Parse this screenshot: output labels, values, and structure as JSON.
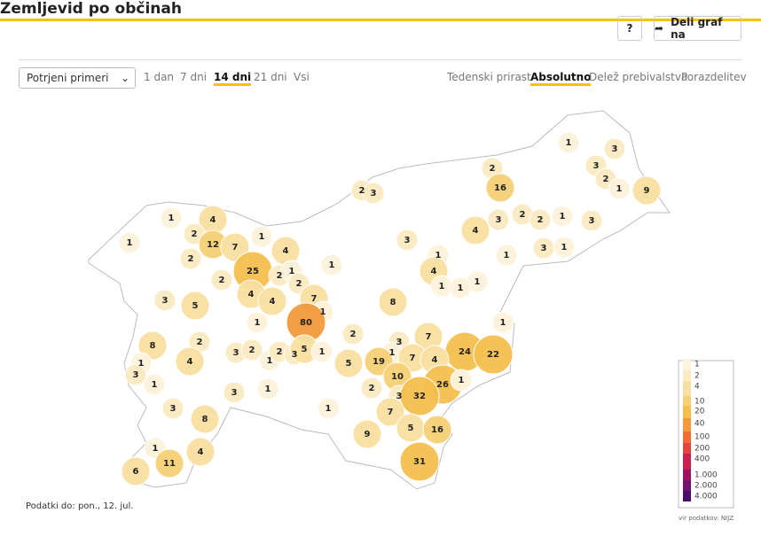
{
  "header": {
    "title": "Zemljevid po občinah",
    "help": "?",
    "share": "Deli graf na"
  },
  "controls": {
    "select": "Potrjeni primeri",
    "periods": [
      "1 dan",
      "7 dni",
      "14 dni",
      "21 dni",
      "Vsi"
    ],
    "active_period": 2,
    "modes": [
      "Tedenski prirast",
      "Absolutno",
      "Delež prebivalstva",
      "Porazdelitev"
    ],
    "active_mode": 1
  },
  "map": {
    "values": [
      1,
      3,
      2,
      3,
      16,
      2,
      1,
      9,
      2,
      3,
      1,
      4,
      3,
      2,
      2,
      1,
      3,
      2,
      12,
      7,
      1,
      4,
      1,
      3,
      4,
      2,
      1,
      3,
      1,
      25,
      2,
      1,
      1,
      1,
      4,
      2,
      2,
      1,
      1,
      1,
      4,
      3,
      5,
      4,
      8,
      7,
      1,
      1,
      80,
      1,
      2,
      7,
      8,
      2,
      3,
      24,
      22,
      3,
      2,
      1,
      2,
      3,
      5,
      1,
      1,
      4,
      5,
      19,
      7,
      4,
      1,
      3,
      10,
      26,
      1,
      1,
      3,
      1,
      2,
      3,
      32,
      1,
      3,
      7,
      8,
      5,
      16,
      9,
      1,
      4,
      31,
      11,
      6
    ]
  },
  "legend": {
    "ticks": [
      1,
      2,
      4,
      10,
      20,
      40,
      100,
      200,
      400,
      {
        "value": 1000,
        "label": "1.000"
      },
      {
        "value": 2000,
        "label": "2.000"
      },
      {
        "value": 4000,
        "label": "4.000"
      }
    ],
    "colors": [
      "#fdf3dc",
      "#fbeac2",
      "#f9e0a2",
      "#f7d075",
      "#f5bf50",
      "#f39a3c",
      "#ee6e35",
      "#e4433f",
      "#cc1f52",
      "#9e1262",
      "#741070",
      "#4b0c6b"
    ],
    "source": "vir podatkov: NIJZ"
  },
  "footer": {
    "date": "Podatki do: pon., 12. jul."
  }
}
